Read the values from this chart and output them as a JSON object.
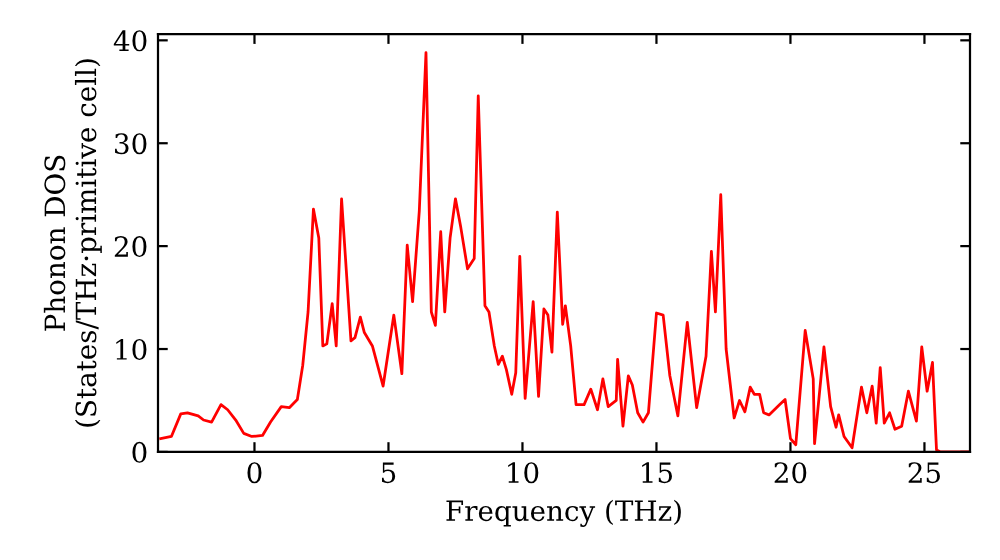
{
  "chart_data": {
    "type": "line",
    "xlabel": "Frequency (THz)",
    "ylabel": "Phonon DOS\n(States/THz·primitive cell)",
    "x": [
      -3.5,
      -3.1,
      -2.75,
      -2.5,
      -2.1,
      -1.9,
      -1.6,
      -1.25,
      -1.0,
      -0.7,
      -0.4,
      -0.1,
      0.3,
      0.6,
      1.0,
      1.3,
      1.6,
      1.8,
      2.0,
      2.2,
      2.4,
      2.55,
      2.7,
      2.9,
      3.05,
      3.25,
      3.6,
      3.75,
      3.95,
      4.1,
      4.4,
      4.8,
      5.2,
      5.5,
      5.7,
      5.9,
      6.15,
      6.4,
      6.6,
      6.75,
      6.95,
      7.1,
      7.3,
      7.5,
      7.7,
      7.95,
      8.2,
      8.35,
      8.6,
      8.75,
      8.95,
      9.1,
      9.25,
      9.4,
      9.6,
      9.75,
      9.9,
      10.1,
      10.4,
      10.6,
      10.8,
      10.95,
      11.1,
      11.3,
      11.5,
      11.6,
      11.8,
      12.0,
      12.3,
      12.55,
      12.8,
      13.0,
      13.2,
      13.5,
      13.55,
      13.75,
      13.95,
      14.1,
      14.3,
      14.5,
      14.7,
      15.0,
      15.25,
      15.5,
      15.8,
      16.15,
      16.5,
      16.85,
      17.05,
      17.2,
      17.4,
      17.6,
      17.9,
      18.1,
      18.3,
      18.5,
      18.65,
      18.85,
      19.0,
      19.2,
      19.6,
      19.8,
      20.0,
      20.2,
      20.55,
      20.85,
      20.9,
      21.25,
      21.5,
      21.7,
      21.8,
      22.0,
      22.3,
      22.65,
      22.85,
      23.05,
      23.2,
      23.35,
      23.5,
      23.7,
      23.9,
      24.15,
      24.4,
      24.7,
      24.9,
      25.1,
      25.3,
      25.45,
      25.6,
      26.7
    ],
    "series": [
      {
        "color": "#ff0000",
        "values": [
          1.3,
          1.5,
          3.7,
          3.8,
          3.5,
          3.1,
          2.9,
          4.6,
          4.1,
          3.1,
          1.8,
          1.5,
          1.6,
          2.9,
          4.4,
          4.3,
          5.1,
          8.4,
          13.6,
          23.6,
          20.8,
          10.3,
          10.5,
          14.4,
          10.3,
          24.6,
          10.8,
          11.1,
          13.1,
          11.6,
          10.3,
          6.4,
          13.3,
          7.6,
          20.1,
          14.6,
          23.4,
          38.8,
          13.6,
          12.3,
          21.4,
          13.6,
          20.8,
          24.6,
          21.8,
          17.8,
          18.8,
          34.6,
          14.2,
          13.6,
          10.3,
          8.5,
          9.3,
          8.0,
          5.6,
          7.7,
          19.0,
          5.2,
          14.6,
          5.4,
          13.9,
          13.3,
          9.7,
          23.3,
          12.4,
          14.2,
          10.3,
          4.6,
          4.6,
          6.1,
          4.1,
          7.1,
          4.4,
          5.0,
          9.0,
          2.5,
          7.4,
          6.5,
          3.8,
          2.9,
          3.8,
          13.5,
          13.3,
          7.4,
          3.5,
          12.6,
          4.3,
          9.3,
          19.5,
          13.6,
          25.0,
          10.0,
          3.3,
          5.0,
          3.9,
          6.3,
          5.6,
          5.6,
          3.8,
          3.6,
          4.6,
          5.1,
          1.3,
          0.7,
          11.8,
          7.1,
          0.8,
          10.2,
          4.4,
          2.4,
          3.6,
          1.5,
          0.4,
          6.3,
          3.8,
          6.4,
          2.8,
          8.2,
          2.8,
          3.8,
          2.2,
          2.5,
          5.9,
          3.0,
          10.2,
          5.9,
          8.7,
          0.2,
          0,
          0
        ]
      }
    ],
    "xlim": [
      -3.6,
      26.7
    ],
    "ylim": [
      0,
      40.6
    ],
    "xticks": [
      0,
      5,
      10,
      15,
      20,
      25
    ],
    "yticks": [
      0,
      10,
      20,
      30,
      40
    ],
    "grid": false,
    "legend": false,
    "marker": "none",
    "line_style": "solid"
  }
}
